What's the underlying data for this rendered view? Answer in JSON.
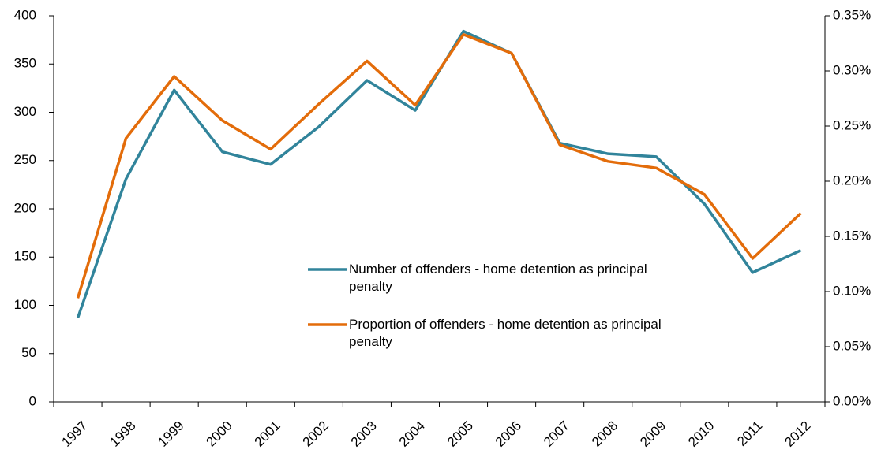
{
  "chart_data": {
    "type": "line",
    "categories": [
      "1997",
      "1998",
      "1999",
      "2000",
      "2001",
      "2002",
      "2003",
      "2004",
      "2005",
      "2006",
      "2007",
      "2008",
      "2009",
      "2010",
      "2011",
      "2012"
    ],
    "series": [
      {
        "name": "Number of offenders - home detention as principal penalty",
        "color": "#31849b",
        "values": [
          87,
          231,
          323,
          259,
          246,
          285,
          333,
          302,
          384,
          361,
          268,
          257,
          254,
          205,
          134,
          157
        ]
      },
      {
        "name": "Proportion of offenders - home detention as principal penalty",
        "color": "#e36c0a",
        "axis": "y2",
        "values": [
          0.094,
          0.239,
          0.295,
          0.255,
          0.229,
          0.27,
          0.309,
          0.269,
          0.333,
          0.316,
          0.233,
          0.218,
          0.212,
          0.188,
          0.13,
          0.171
        ]
      }
    ],
    "ylim": [
      0,
      400
    ],
    "yticks": [
      0,
      50,
      100,
      150,
      200,
      250,
      300,
      350,
      400
    ],
    "y2lim": [
      0,
      0.35
    ],
    "y2ticks": [
      {
        "value": 0,
        "label": "0.00%"
      },
      {
        "value": 0.05,
        "label": "0.05%"
      },
      {
        "value": 0.1,
        "label": "0.10%"
      },
      {
        "value": 0.15,
        "label": "0.15%"
      },
      {
        "value": 0.2,
        "label": "0.20%"
      },
      {
        "value": 0.25,
        "label": "0.25%"
      },
      {
        "value": 0.3,
        "label": "0.30%"
      },
      {
        "value": 0.35,
        "label": "0.35%"
      }
    ],
    "legend": "center"
  }
}
